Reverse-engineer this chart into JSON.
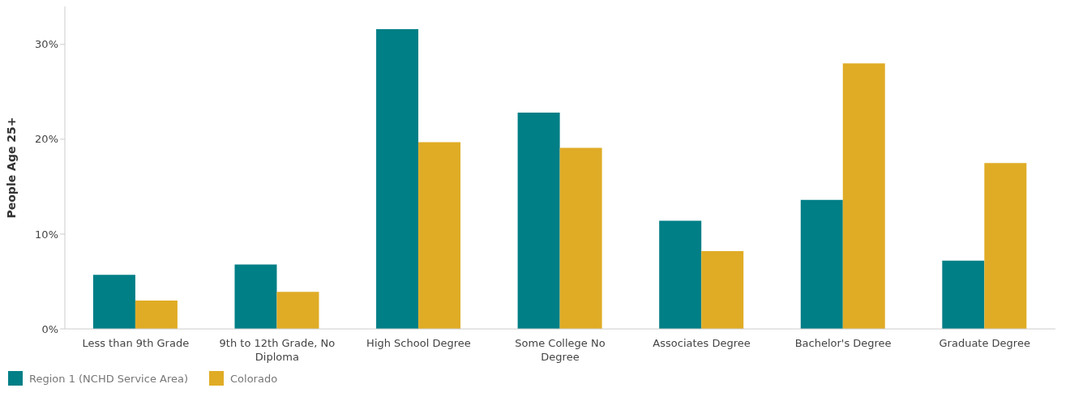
{
  "chart_data": {
    "type": "bar",
    "ylabel": "People Age 25+",
    "categories": [
      "Less than 9th Grade",
      "9th to 12th Grade, No Diploma",
      "High School Degree",
      "Some College No Degree",
      "Associates Degree",
      "Bachelor's Degree",
      "Graduate Degree"
    ],
    "series": [
      {
        "name": "Region 1 (NCHD Service Area)",
        "color": "#007f86",
        "values": [
          5.7,
          6.8,
          31.6,
          22.8,
          11.4,
          13.6,
          7.2
        ]
      },
      {
        "name": "Colorado",
        "color": "#e0ac26",
        "values": [
          3.0,
          3.9,
          19.7,
          19.1,
          8.2,
          28.0,
          17.5
        ]
      }
    ],
    "ylim": [
      0,
      34
    ],
    "yticks": [
      {
        "value": 0,
        "label": "0%"
      },
      {
        "value": 10,
        "label": "10%"
      },
      {
        "value": 20,
        "label": "20%"
      },
      {
        "value": 30,
        "label": "30%"
      }
    ],
    "grid": false,
    "legend": "bottom left"
  }
}
